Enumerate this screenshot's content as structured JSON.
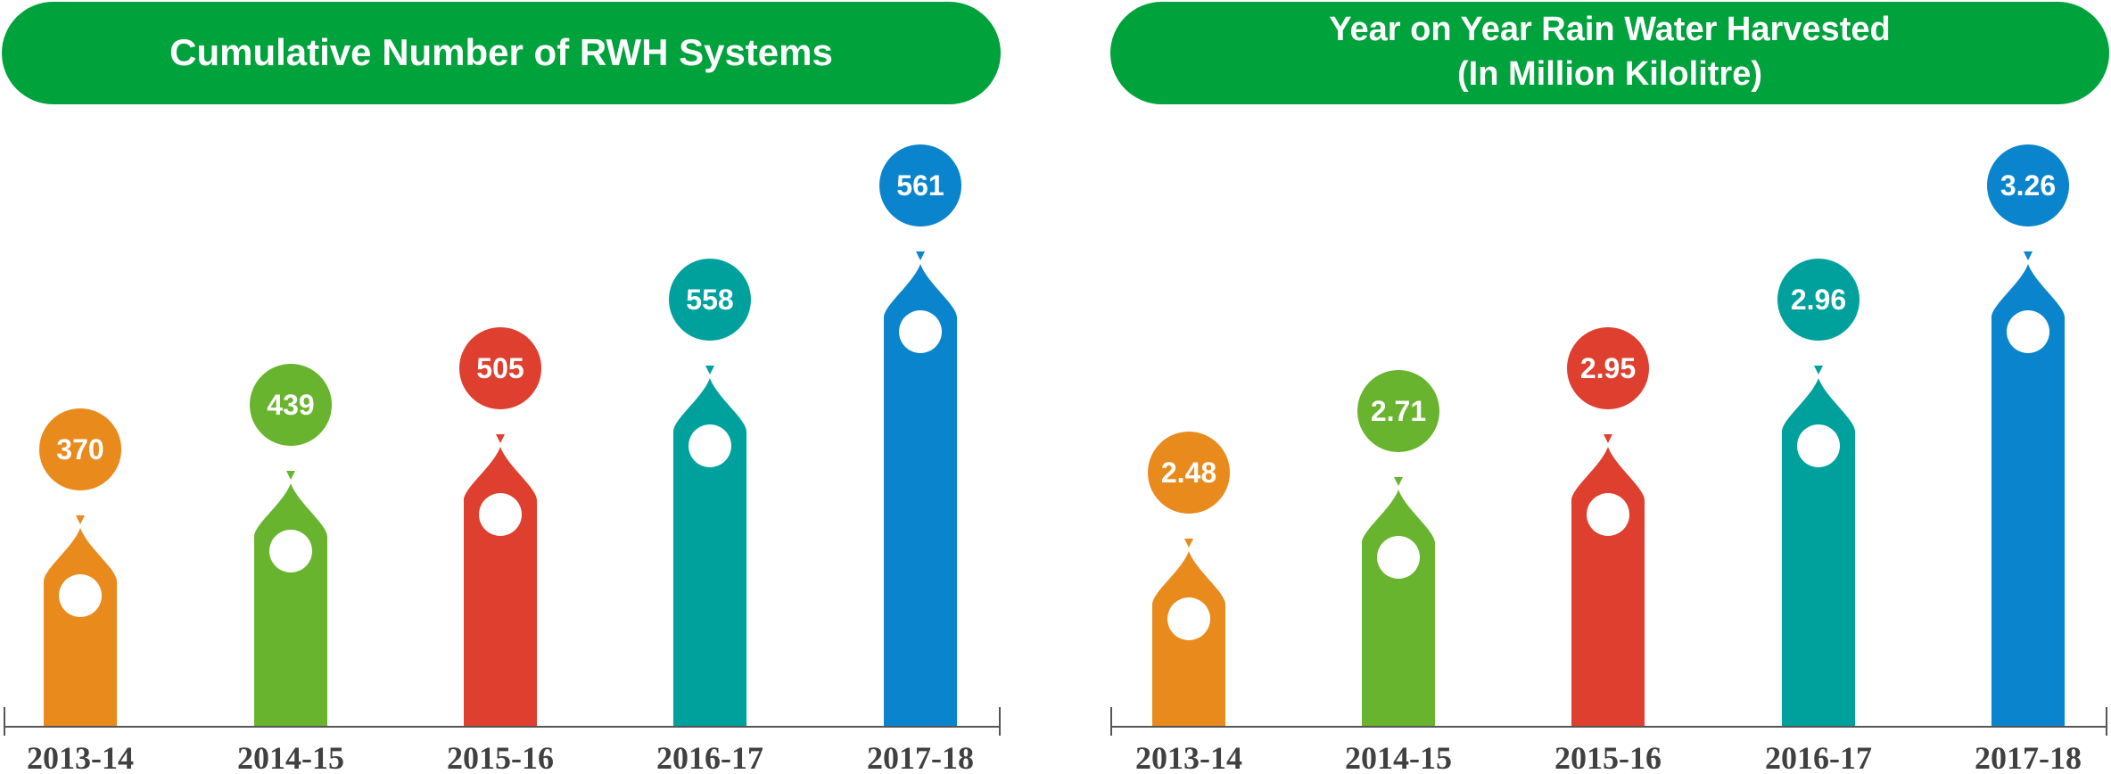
{
  "palette": [
    "#E98A1D",
    "#68B42E",
    "#DE3F2F",
    "#00A19D",
    "#0A84CC"
  ],
  "banner_color": "#00A23C",
  "axis_color": "#555555",
  "chart_data": [
    {
      "type": "bar",
      "title": "Cumulative Number of RWH Systems",
      "categories": [
        "2013-14",
        "2014-15",
        "2015-16",
        "2016-17",
        "2017-18"
      ],
      "values": [
        370,
        439,
        505,
        558,
        561
      ],
      "value_labels": [
        "370",
        "439",
        "505",
        "558",
        "561"
      ],
      "xlabel": "",
      "ylabel": "",
      "grid": false
    },
    {
      "type": "bar",
      "title": "Year on Year Rain Water Harvested",
      "subtitle": "(In Million Kilolitre)",
      "categories": [
        "2013-14",
        "2014-15",
        "2015-16",
        "2016-17",
        "2017-18"
      ],
      "values": [
        2.48,
        2.71,
        2.95,
        2.96,
        3.26
      ],
      "value_labels": [
        "2.48",
        "2.71",
        "2.95",
        "2.96",
        "3.26"
      ],
      "xlabel": "",
      "ylabel": "",
      "grid": false
    }
  ]
}
